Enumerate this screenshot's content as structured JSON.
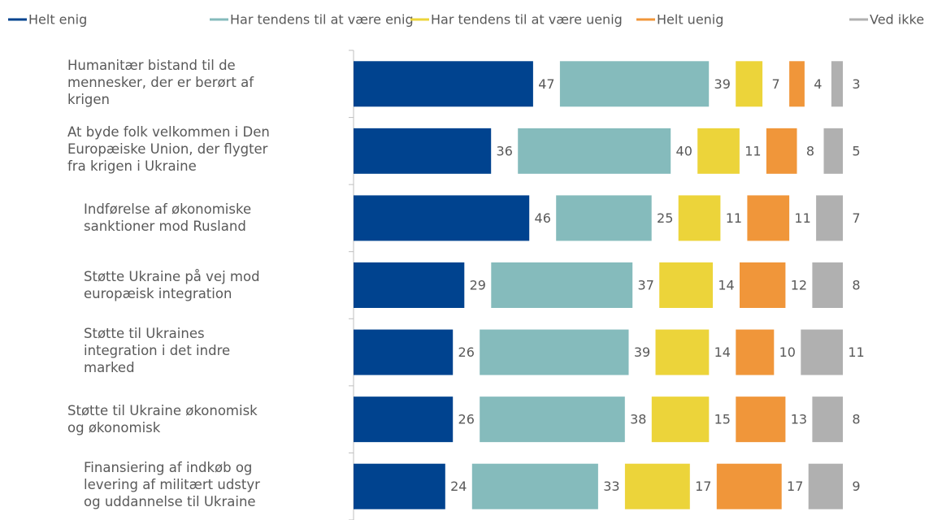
{
  "chart_data": {
    "type": "stacked-bar-horizontal",
    "categories": [
      "Humanitær bistand til de\nmennesker, der er berørt af\nkrigen",
      "At byde folk velkommen i Den\nEuropæiske Union, der flygter\nfra krigen i Ukraine",
      "Indførelse af økonomiske\nsanktioner mod Rusland",
      "Støtte Ukraine på vej mod\neuropæisk integration",
      "Støtte til Ukraines\nintegration i det indre\nmarked",
      "Støtte til Ukraine økonomisk\nog økonomisk",
      "Finansiering af indkøb og\nlevering af militært udstyr\nog uddannelse til Ukraine"
    ],
    "series": [
      {
        "name": "Helt enig",
        "color": "#00438f",
        "values": [
          47,
          36,
          46,
          29,
          26,
          26,
          24
        ]
      },
      {
        "name": "Har tendens til at være enig",
        "color": "#85bbbc",
        "values": [
          39,
          40,
          25,
          37,
          39,
          38,
          33
        ]
      },
      {
        "name": "Har tendens til at være uenig",
        "color": "#ecd43a",
        "values": [
          7,
          11,
          11,
          14,
          14,
          15,
          17
        ]
      },
      {
        "name": "Helt uenig",
        "color": "#f0963a",
        "values": [
          4,
          8,
          11,
          12,
          10,
          13,
          17
        ]
      },
      {
        "name": "Ved ikke",
        "color": "#b0b0b0",
        "values": [
          3,
          5,
          7,
          8,
          11,
          8,
          9
        ]
      }
    ],
    "legend": "top"
  }
}
